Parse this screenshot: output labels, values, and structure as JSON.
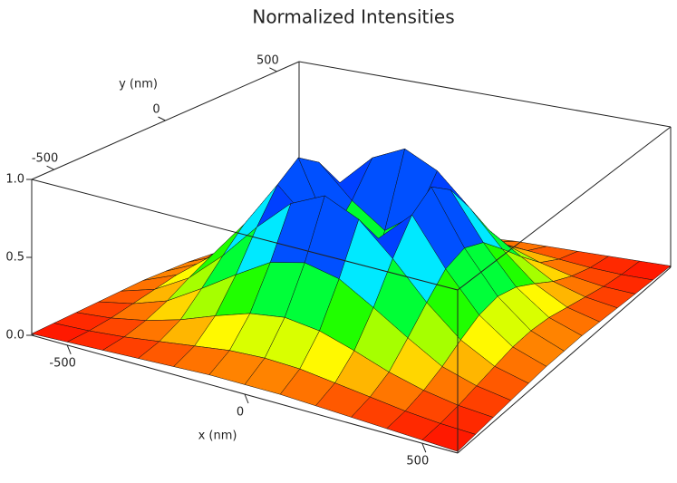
{
  "chart_data": {
    "type": "surface",
    "title": "Normalized Intensities",
    "x_label": "x (nm)",
    "y_label": "y (nm)",
    "x": [
      -600,
      -500,
      -400,
      -300,
      -200,
      -100,
      0,
      100,
      200,
      300,
      400,
      500,
      600
    ],
    "y": [
      -600,
      -500,
      -400,
      -300,
      -200,
      -100,
      0,
      100,
      200,
      300,
      400,
      500,
      600
    ],
    "z": [
      [
        0.01,
        0.02,
        0.03,
        0.04,
        0.05,
        0.06,
        0.06,
        0.06,
        0.05,
        0.04,
        0.03,
        0.02,
        0.01
      ],
      [
        0.02,
        0.03,
        0.05,
        0.08,
        0.11,
        0.14,
        0.15,
        0.14,
        0.11,
        0.08,
        0.05,
        0.03,
        0.02
      ],
      [
        0.03,
        0.05,
        0.09,
        0.15,
        0.23,
        0.3,
        0.33,
        0.3,
        0.23,
        0.15,
        0.09,
        0.05,
        0.03
      ],
      [
        0.04,
        0.08,
        0.15,
        0.28,
        0.42,
        0.55,
        0.6,
        0.55,
        0.42,
        0.28,
        0.15,
        0.08,
        0.04
      ],
      [
        0.05,
        0.11,
        0.23,
        0.42,
        0.65,
        0.85,
        0.95,
        0.85,
        0.65,
        0.42,
        0.23,
        0.11,
        0.05
      ],
      [
        0.06,
        0.14,
        0.3,
        0.55,
        0.85,
        0.65,
        0.5,
        0.65,
        0.85,
        0.55,
        0.3,
        0.14,
        0.06
      ],
      [
        0.06,
        0.15,
        0.33,
        0.6,
        0.95,
        0.5,
        0.1,
        0.5,
        0.95,
        0.6,
        0.33,
        0.15,
        0.06
      ],
      [
        0.06,
        0.14,
        0.3,
        0.55,
        0.85,
        0.65,
        0.5,
        0.65,
        0.85,
        0.55,
        0.3,
        0.14,
        0.06
      ],
      [
        0.05,
        0.11,
        0.23,
        0.42,
        0.65,
        0.85,
        0.95,
        0.85,
        0.65,
        0.42,
        0.23,
        0.11,
        0.05
      ],
      [
        0.04,
        0.08,
        0.15,
        0.28,
        0.42,
        0.55,
        0.6,
        0.55,
        0.42,
        0.28,
        0.15,
        0.08,
        0.04
      ],
      [
        0.03,
        0.05,
        0.09,
        0.15,
        0.23,
        0.3,
        0.33,
        0.3,
        0.23,
        0.15,
        0.09,
        0.05,
        0.03
      ],
      [
        0.02,
        0.03,
        0.05,
        0.08,
        0.11,
        0.14,
        0.15,
        0.14,
        0.11,
        0.08,
        0.05,
        0.03,
        0.02
      ],
      [
        0.01,
        0.02,
        0.03,
        0.04,
        0.05,
        0.06,
        0.06,
        0.06,
        0.05,
        0.04,
        0.03,
        0.02,
        0.01
      ]
    ],
    "xlim": [
      -600,
      600
    ],
    "ylim": [
      -600,
      600
    ],
    "zlim": [
      0,
      1
    ],
    "xticks": [
      -500,
      0,
      500
    ],
    "yticks": [
      -500,
      0,
      500
    ],
    "zticks": [
      {
        "value": 0,
        "label": "0.0"
      },
      {
        "value": 0.5,
        "label": "0.5"
      },
      {
        "value": 1,
        "label": "1.0"
      }
    ]
  }
}
